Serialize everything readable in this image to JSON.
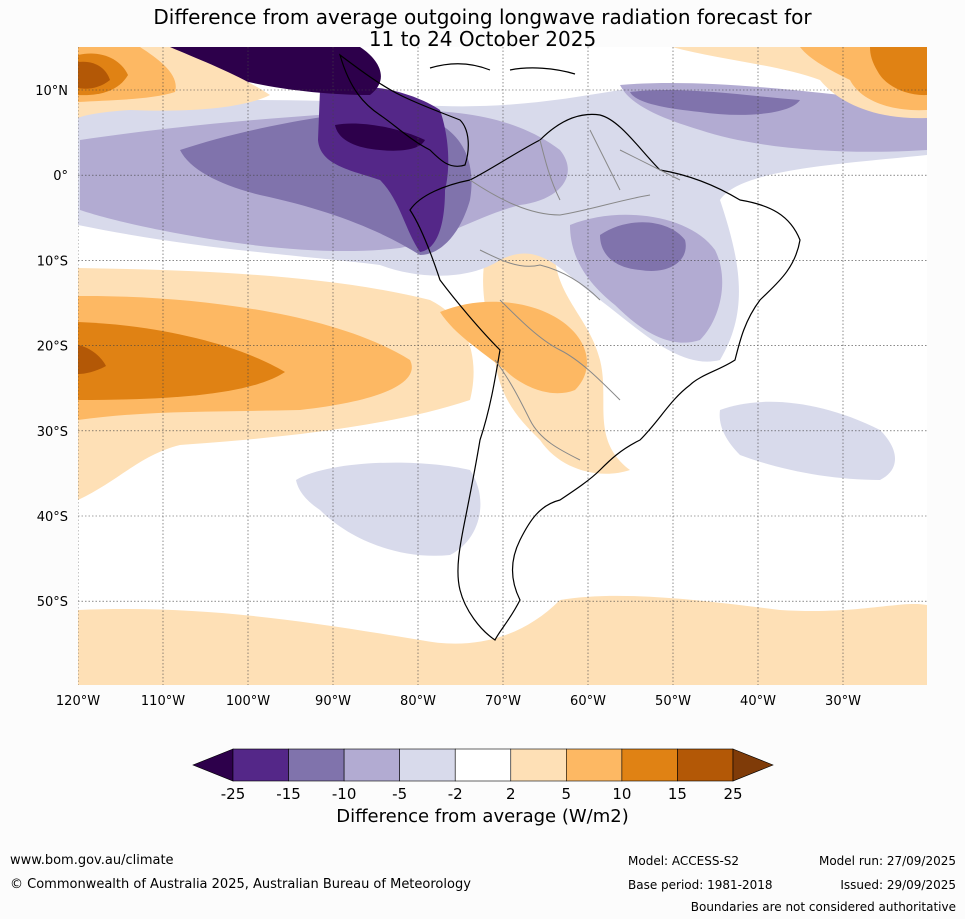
{
  "title": {
    "line1": "Difference from average outgoing longwave radiation forecast for",
    "line2": "11 to 24 October 2025"
  },
  "map": {
    "lon_labels": [
      "120°W",
      "110°W",
      "100°W",
      "90°W",
      "80°W",
      "70°W",
      "60°W",
      "50°W",
      "40°W",
      "30°W"
    ],
    "lat_labels": [
      "10°N",
      "0°",
      "10°S",
      "20°S",
      "30°S",
      "40°S",
      "50°S"
    ]
  },
  "colorbar": {
    "ticks": [
      "-25",
      "-15",
      "-10",
      "-5",
      "-2",
      "2",
      "5",
      "10",
      "15",
      "25"
    ],
    "colors": [
      "#2d004b",
      "#542788",
      "#8073ac",
      "#b2abd2",
      "#d8daeb",
      "#ffffff",
      "#fee0b6",
      "#fdb863",
      "#e08214",
      "#b35806",
      "#7f3b08"
    ],
    "label": "Difference from average (W/m2)"
  },
  "footer": {
    "website": "www.bom.gov.au/climate",
    "copyright": "© Commonwealth of Australia 2025, Australian Bureau of Meteorology",
    "model": "Model: ACCESS-S2",
    "base_period": "Base period: 1981-2018",
    "model_run": "Model run: 27/09/2025",
    "issued": "Issued: 29/09/2025",
    "disclaimer": "Boundaries are not considered authoritative"
  }
}
